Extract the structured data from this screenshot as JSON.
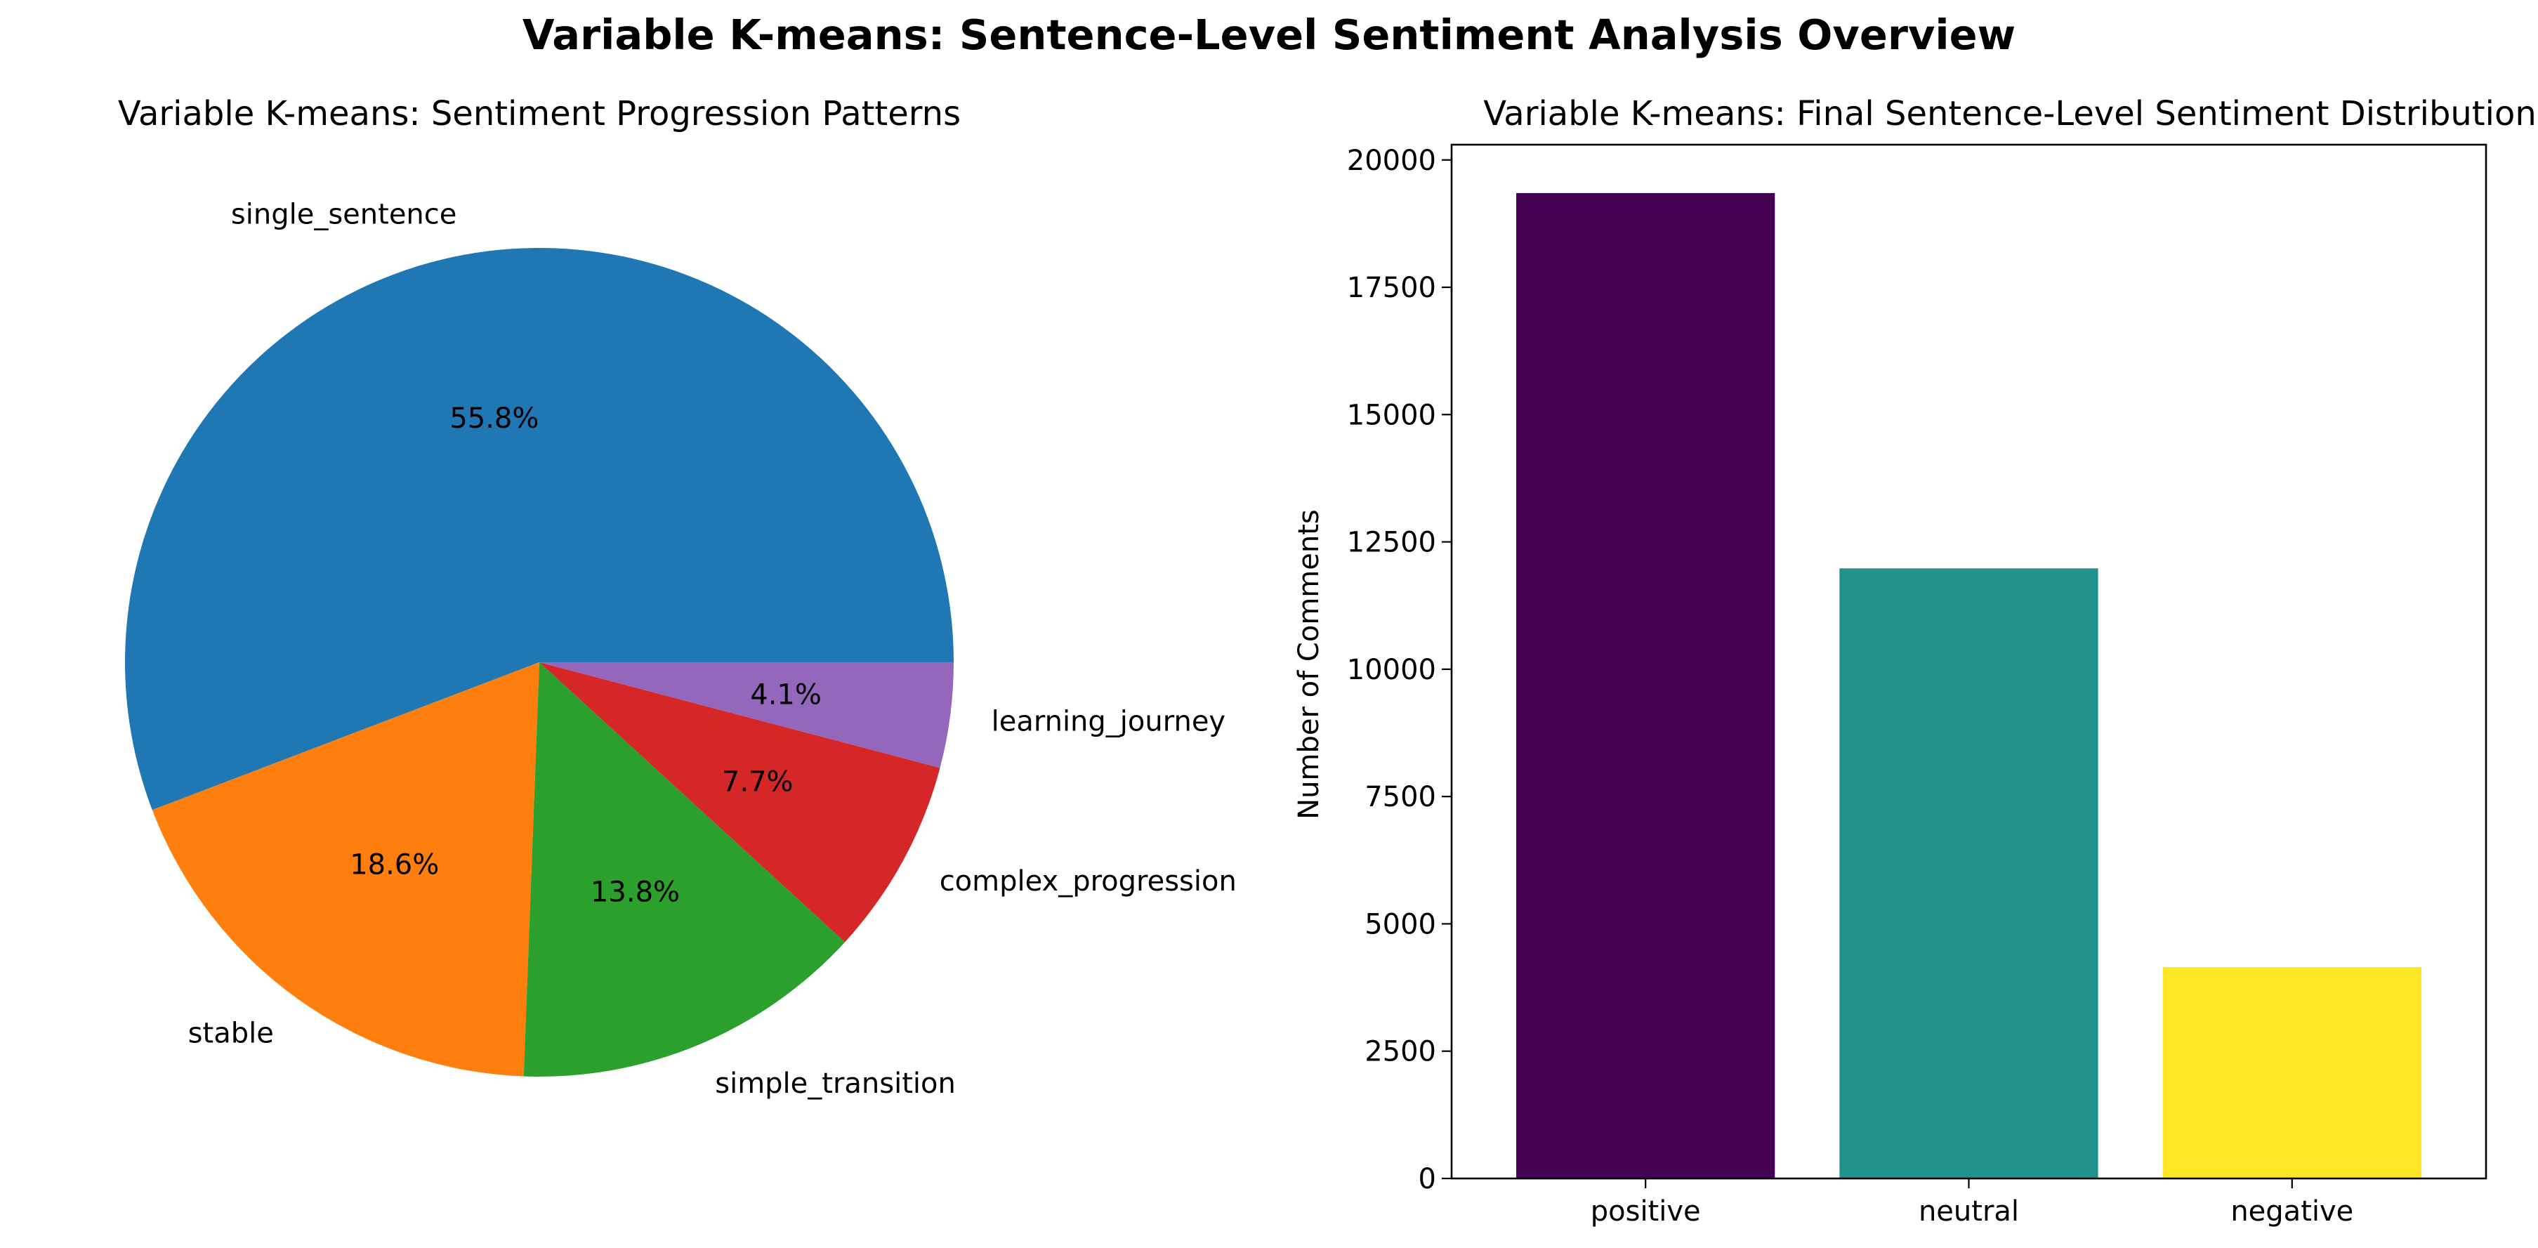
{
  "figure": {
    "title": "Variable K-means: Sentence-Level Sentiment Analysis Overview"
  },
  "chart_data": [
    {
      "type": "pie",
      "title": "Variable K-means: Sentiment Progression Patterns",
      "labels": [
        "single_sentence",
        "stable",
        "simple_transition",
        "complex_progression",
        "learning_journey"
      ],
      "values": [
        55.8,
        18.6,
        13.8,
        7.7,
        4.1
      ],
      "value_labels": [
        "55.8%",
        "18.6%",
        "13.8%",
        "7.7%",
        "4.1%"
      ],
      "colors": [
        "#1f77b4",
        "#ff7f0e",
        "#2ca02c",
        "#d62728",
        "#9467bd"
      ],
      "start_angle": "0 deg (3 o'clock), counterclockwise",
      "legend": "none"
    },
    {
      "type": "bar",
      "title": "Variable K-means: Final Sentence-Level Sentiment Distribution",
      "categories": [
        "positive",
        "neutral",
        "negative"
      ],
      "values": [
        19350,
        11980,
        4150
      ],
      "colors": [
        "#440154",
        "#21918c",
        "#fde725"
      ],
      "xlabel": "",
      "ylabel": "Number of Comments",
      "ylim": [
        0,
        20300
      ],
      "yticks": [
        0,
        2500,
        5000,
        7500,
        10000,
        12500,
        15000,
        17500,
        20000
      ],
      "grid": false,
      "legend": "none"
    }
  ]
}
